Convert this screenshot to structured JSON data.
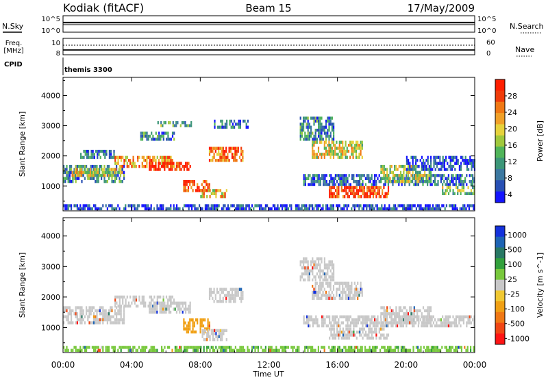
{
  "header": {
    "station": "Kodiak (fitACF)",
    "beam": "Beam 15",
    "date": "17/May/2009"
  },
  "top_strips": {
    "nsky_label": "N.Sky",
    "nsky_ticks": [
      "10^5",
      "10^0"
    ],
    "nsearch_label": "N.Search",
    "freq_label_line1": "Freq.",
    "freq_label_line2": "[MHz]",
    "freq_ticks": [
      "10",
      "8"
    ],
    "nave_label": "Nave",
    "nave_ticks": [
      "60",
      "0"
    ],
    "cpid_label": "CPID",
    "cpid_value": "themis 3300"
  },
  "chart_data": [
    {
      "type": "heatmap",
      "panel": "power",
      "ylabel": "Slant Range [km]",
      "xlabel": "Time UT",
      "x_ticks": [
        "00:00",
        "04:00",
        "08:00",
        "12:00",
        "16:00",
        "20:00",
        "00:00"
      ],
      "x_tick_hours": [
        0,
        4,
        8,
        12,
        16,
        20,
        24
      ],
      "y_ticks": [
        1000,
        2000,
        3000,
        4000
      ],
      "ylim": [
        180,
        4600
      ],
      "xlim_hours": [
        0,
        24
      ],
      "colorbar_label": "Power [dB]",
      "colorbar_ticks": [
        "28",
        "24",
        "20",
        "16",
        "12",
        "8",
        "4"
      ],
      "colorbar_colors": [
        "#1414ff",
        "#2850b4",
        "#3c78a0",
        "#3c9678",
        "#50b45a",
        "#a0c83c",
        "#e6d23c",
        "#f0a028",
        "#f07814",
        "#f03c0a",
        "#ff1e00"
      ],
      "regions": [
        {
          "t0": 0.0,
          "t1": 3.6,
          "r0": 1100,
          "r1": 1700,
          "v": 10
        },
        {
          "t0": 0.5,
          "t1": 3.5,
          "r0": 1350,
          "r1": 1600,
          "v": 18
        },
        {
          "t0": 1.0,
          "t1": 3.0,
          "r0": 1900,
          "r1": 2200,
          "v": 8
        },
        {
          "t0": 3.0,
          "t1": 6.5,
          "r0": 1650,
          "r1": 2000,
          "v": 22
        },
        {
          "t0": 5.0,
          "t1": 7.5,
          "r0": 1500,
          "r1": 1800,
          "v": 28
        },
        {
          "t0": 7.0,
          "t1": 8.6,
          "r0": 800,
          "r1": 1200,
          "v": 26
        },
        {
          "t0": 8.0,
          "t1": 9.6,
          "r0": 600,
          "r1": 900,
          "v": 20
        },
        {
          "t0": 8.5,
          "t1": 10.5,
          "r0": 1800,
          "r1": 2300,
          "v": 24
        },
        {
          "t0": 5.5,
          "t1": 7.5,
          "r0": 2950,
          "r1": 3150,
          "v": 12
        },
        {
          "t0": 8.8,
          "t1": 10.8,
          "r0": 2900,
          "r1": 3200,
          "v": 8
        },
        {
          "t0": 4.5,
          "t1": 6.5,
          "r0": 2500,
          "r1": 2800,
          "v": 10
        },
        {
          "t0": 13.8,
          "t1": 15.8,
          "r0": 2500,
          "r1": 3300,
          "v": 10
        },
        {
          "t0": 14.5,
          "t1": 17.5,
          "r0": 1900,
          "r1": 2500,
          "v": 18
        },
        {
          "t0": 15.5,
          "t1": 19.0,
          "r0": 600,
          "r1": 1000,
          "v": 26
        },
        {
          "t0": 14.0,
          "t1": 24.0,
          "r0": 1000,
          "r1": 1400,
          "v": 8
        },
        {
          "t0": 18.5,
          "t1": 21.5,
          "r0": 1100,
          "r1": 1700,
          "v": 16
        },
        {
          "t0": 20.0,
          "t1": 24.0,
          "r0": 1500,
          "r1": 2000,
          "v": 6
        },
        {
          "t0": 0.0,
          "t1": 24.0,
          "r0": 180,
          "r1": 400,
          "v": 6
        },
        {
          "t0": 22.0,
          "t1": 24.0,
          "r0": 700,
          "r1": 1000,
          "v": 14
        }
      ]
    },
    {
      "type": "heatmap",
      "panel": "velocity",
      "ylabel": "Slant Range [km]",
      "xlabel": "Time UT",
      "x_ticks": [
        "00:00",
        "04:00",
        "08:00",
        "12:00",
        "16:00",
        "20:00",
        "00:00"
      ],
      "x_tick_hours": [
        0,
        4,
        8,
        12,
        16,
        20,
        24
      ],
      "y_ticks": [
        1000,
        2000,
        3000,
        4000
      ],
      "ylim": [
        180,
        4600
      ],
      "xlim_hours": [
        0,
        24
      ],
      "colorbar_label": "Velocity [m s^-1]",
      "colorbar_ticks": [
        "1000",
        "500",
        "100",
        "25",
        "-25",
        "-100",
        "-500",
        "-1000"
      ],
      "colorbar_colors": [
        "#1432dc",
        "#1e64b4",
        "#287864",
        "#32a03c",
        "#78c83c",
        "#c8c8c8",
        "#f0c832",
        "#f0a014",
        "#f07814",
        "#f04614",
        "#ff1414"
      ],
      "regions": [
        {
          "t0": 0.0,
          "t1": 3.6,
          "r0": 1100,
          "r1": 1700,
          "v": 0
        },
        {
          "t0": 3.0,
          "t1": 6.5,
          "r0": 1650,
          "r1": 2050,
          "v": 0
        },
        {
          "t0": 5.0,
          "t1": 7.5,
          "r0": 1500,
          "r1": 1850,
          "v": 0
        },
        {
          "t0": 7.0,
          "t1": 8.6,
          "r0": 800,
          "r1": 1300,
          "v": -120
        },
        {
          "t0": 8.0,
          "t1": 9.6,
          "r0": 600,
          "r1": 950,
          "v": 0
        },
        {
          "t0": 8.5,
          "t1": 10.5,
          "r0": 1800,
          "r1": 2300,
          "v": 0
        },
        {
          "t0": 14.0,
          "t1": 24.0,
          "r0": 1000,
          "r1": 1400,
          "v": 0
        },
        {
          "t0": 15.5,
          "t1": 19.0,
          "r0": 600,
          "r1": 1000,
          "v": 0
        },
        {
          "t0": 18.5,
          "t1": 21.5,
          "r0": 1100,
          "r1": 1700,
          "v": 0
        },
        {
          "t0": 14.5,
          "t1": 17.5,
          "r0": 1900,
          "r1": 2500,
          "v": 0
        },
        {
          "t0": 13.8,
          "t1": 15.8,
          "r0": 2500,
          "r1": 3300,
          "v": 0
        },
        {
          "t0": 0.0,
          "t1": 24.0,
          "r0": 180,
          "r1": 400,
          "v": 60
        }
      ]
    }
  ]
}
